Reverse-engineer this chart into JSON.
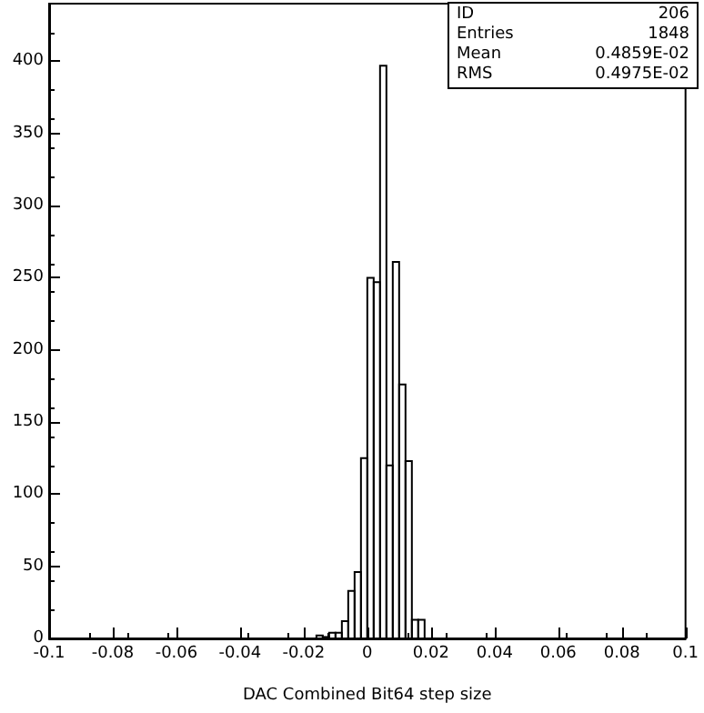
{
  "chart_data": {
    "type": "histogram",
    "xlabel": "DAC Combined Bit64 step size",
    "bins": [
      -0.016,
      -0.014,
      -0.012,
      -0.01,
      -0.008,
      -0.006,
      -0.004,
      -0.002,
      0,
      0.002,
      0.004,
      0.006,
      0.008,
      0.01,
      0.012,
      0.014,
      0.016,
      0.018
    ],
    "values": [
      2,
      1,
      4,
      4,
      12,
      33,
      46,
      125,
      250,
      247,
      397,
      120,
      261,
      176,
      123,
      13,
      13
    ],
    "color": "#000000",
    "xlim": [
      -0.1,
      0.1
    ],
    "xticks": [
      -0.1,
      -0.08,
      -0.06,
      -0.04,
      -0.02,
      0,
      0.02,
      0.04,
      0.06,
      0.08,
      0.1
    ],
    "ylim": [
      0,
      440
    ],
    "yticks": [
      0,
      50,
      100,
      150,
      200,
      250,
      300,
      350,
      400
    ],
    "grid": false,
    "annotations": [
      "ID 206",
      "Entries 1848",
      "Mean 0.4859E-02",
      "RMS 0.4975E-02"
    ]
  }
}
